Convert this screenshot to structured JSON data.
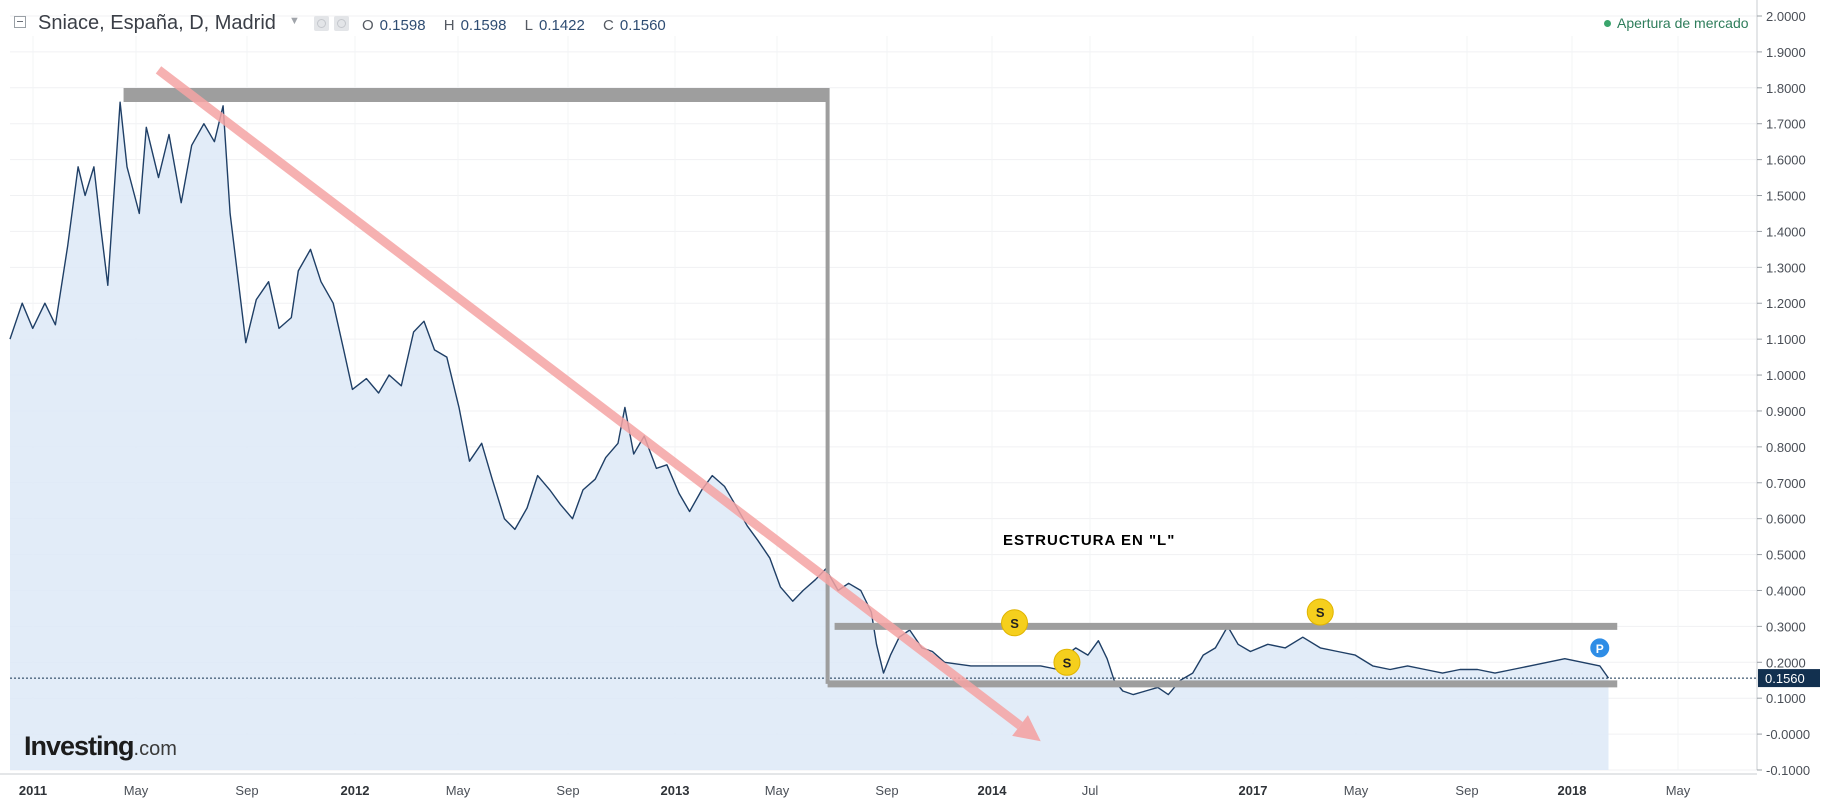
{
  "header": {
    "symbol": "Sniace, España, D, Madrid",
    "ohlc": [
      {
        "key": "O",
        "value": "0.1598"
      },
      {
        "key": "H",
        "value": "0.1598"
      },
      {
        "key": "L",
        "value": "0.1422"
      },
      {
        "key": "C",
        "value": "0.1560"
      }
    ],
    "market_status": "Apertura de mercado",
    "market_status_color": "#3aa56c"
  },
  "logo": {
    "brand": "Investing",
    "suffix": ".com"
  },
  "colors": {
    "line": "#1f3f66",
    "area": "#dde9f7",
    "trend_arrow": "#f4a3a3",
    "structure": "#9e9e9e",
    "badge_s": "#f5cf1d",
    "badge_p": "#2e8de6",
    "price_tag": "#12304f"
  },
  "chart_data": {
    "type": "area",
    "x_tick_labels": [
      "2011",
      "May",
      "Sep",
      "2012",
      "May",
      "Sep",
      "2013",
      "May",
      "Sep",
      "2014",
      "Jul",
      "2017",
      "May",
      "Sep",
      "2018",
      "May"
    ],
    "y_tick_labels": [
      "2.0000",
      "1.9000",
      "1.8000",
      "1.7000",
      "1.6000",
      "1.5000",
      "1.4000",
      "1.3000",
      "1.2000",
      "1.1000",
      "1.0000",
      "0.9000",
      "0.8000",
      "0.7000",
      "0.6000",
      "0.5000",
      "0.4000",
      "0.3000",
      "0.2000",
      "0.1000",
      "-0.0000",
      "-0.1000"
    ],
    "ylim": [
      -0.1,
      2.0
    ],
    "grid": true,
    "last_price": "0.1560",
    "annotation": "ESTRUCTURA EN \"L\"",
    "markers": [
      {
        "label": "S",
        "t": 0.575,
        "y": 0.31
      },
      {
        "label": "S",
        "t": 0.605,
        "y": 0.2
      },
      {
        "label": "S",
        "t": 0.75,
        "y": 0.34
      },
      {
        "label": "P",
        "t": 0.91,
        "y": 0.24
      }
    ],
    "series": [
      {
        "points": [
          [
            0,
            1.1
          ],
          [
            0.007,
            1.2
          ],
          [
            0.013,
            1.13
          ],
          [
            0.02,
            1.2
          ],
          [
            0.026,
            1.14
          ],
          [
            0.033,
            1.36
          ],
          [
            0.039,
            1.58
          ],
          [
            0.043,
            1.5
          ],
          [
            0.048,
            1.58
          ],
          [
            0.052,
            1.41
          ],
          [
            0.056,
            1.25
          ],
          [
            0.063,
            1.76
          ],
          [
            0.067,
            1.58
          ],
          [
            0.074,
            1.45
          ],
          [
            0.078,
            1.69
          ],
          [
            0.085,
            1.55
          ],
          [
            0.091,
            1.67
          ],
          [
            0.098,
            1.48
          ],
          [
            0.104,
            1.64
          ],
          [
            0.111,
            1.7
          ],
          [
            0.117,
            1.65
          ],
          [
            0.122,
            1.75
          ],
          [
            0.126,
            1.45
          ],
          [
            0.13,
            1.29
          ],
          [
            0.135,
            1.09
          ],
          [
            0.141,
            1.21
          ],
          [
            0.148,
            1.26
          ],
          [
            0.154,
            1.13
          ],
          [
            0.161,
            1.16
          ],
          [
            0.165,
            1.29
          ],
          [
            0.172,
            1.35
          ],
          [
            0.178,
            1.26
          ],
          [
            0.185,
            1.2
          ],
          [
            0.191,
            1.07
          ],
          [
            0.196,
            0.96
          ],
          [
            0.204,
            0.99
          ],
          [
            0.211,
            0.95
          ],
          [
            0.217,
            1.0
          ],
          [
            0.224,
            0.97
          ],
          [
            0.231,
            1.12
          ],
          [
            0.237,
            1.15
          ],
          [
            0.243,
            1.07
          ],
          [
            0.25,
            1.05
          ],
          [
            0.257,
            0.91
          ],
          [
            0.263,
            0.76
          ],
          [
            0.27,
            0.81
          ],
          [
            0.276,
            0.71
          ],
          [
            0.283,
            0.6
          ],
          [
            0.289,
            0.57
          ],
          [
            0.296,
            0.63
          ],
          [
            0.302,
            0.72
          ],
          [
            0.309,
            0.68
          ],
          [
            0.315,
            0.64
          ],
          [
            0.322,
            0.6
          ],
          [
            0.328,
            0.68
          ],
          [
            0.335,
            0.71
          ],
          [
            0.341,
            0.77
          ],
          [
            0.348,
            0.81
          ],
          [
            0.352,
            0.91
          ],
          [
            0.357,
            0.78
          ],
          [
            0.363,
            0.83
          ],
          [
            0.37,
            0.74
          ],
          [
            0.376,
            0.75
          ],
          [
            0.383,
            0.67
          ],
          [
            0.389,
            0.62
          ],
          [
            0.396,
            0.68
          ],
          [
            0.402,
            0.72
          ],
          [
            0.409,
            0.69
          ],
          [
            0.415,
            0.64
          ],
          [
            0.422,
            0.58
          ],
          [
            0.428,
            0.54
          ],
          [
            0.435,
            0.49
          ],
          [
            0.441,
            0.41
          ],
          [
            0.448,
            0.37
          ],
          [
            0.454,
            0.4
          ],
          [
            0.461,
            0.43
          ],
          [
            0.467,
            0.46
          ],
          [
            0.474,
            0.4
          ],
          [
            0.48,
            0.42
          ],
          [
            0.487,
            0.4
          ],
          [
            0.493,
            0.34
          ],
          [
            0.496,
            0.25
          ],
          [
            0.5,
            0.17
          ],
          [
            0.504,
            0.22
          ],
          [
            0.509,
            0.27
          ],
          [
            0.515,
            0.29
          ],
          [
            0.522,
            0.24
          ],
          [
            0.528,
            0.23
          ],
          [
            0.535,
            0.2
          ],
          [
            0.55,
            0.19
          ],
          [
            0.57,
            0.19
          ],
          [
            0.59,
            0.19
          ],
          [
            0.6,
            0.18
          ],
          [
            0.602,
            0.21
          ],
          [
            0.61,
            0.24
          ],
          [
            0.617,
            0.22
          ],
          [
            0.623,
            0.26
          ],
          [
            0.628,
            0.21
          ],
          [
            0.632,
            0.15
          ],
          [
            0.637,
            0.12
          ],
          [
            0.643,
            0.11
          ],
          [
            0.65,
            0.12
          ],
          [
            0.657,
            0.13
          ],
          [
            0.663,
            0.11
          ],
          [
            0.67,
            0.15
          ],
          [
            0.677,
            0.17
          ],
          [
            0.683,
            0.22
          ],
          [
            0.69,
            0.24
          ],
          [
            0.697,
            0.3
          ],
          [
            0.703,
            0.25
          ],
          [
            0.71,
            0.23
          ],
          [
            0.72,
            0.25
          ],
          [
            0.73,
            0.24
          ],
          [
            0.74,
            0.27
          ],
          [
            0.75,
            0.24
          ],
          [
            0.76,
            0.23
          ],
          [
            0.77,
            0.22
          ],
          [
            0.78,
            0.19
          ],
          [
            0.79,
            0.18
          ],
          [
            0.8,
            0.19
          ],
          [
            0.81,
            0.18
          ],
          [
            0.82,
            0.17
          ],
          [
            0.83,
            0.18
          ],
          [
            0.84,
            0.18
          ],
          [
            0.85,
            0.17
          ],
          [
            0.86,
            0.18
          ],
          [
            0.87,
            0.19
          ],
          [
            0.88,
            0.2
          ],
          [
            0.89,
            0.21
          ],
          [
            0.9,
            0.2
          ],
          [
            0.91,
            0.19
          ],
          [
            0.915,
            0.156
          ]
        ]
      }
    ],
    "drawings": {
      "downtrend_arrow": {
        "from": [
          0.085,
          1.85
        ],
        "to": [
          0.59,
          -0.02
        ]
      },
      "l_structure": {
        "top_bar": {
          "t0": 0.065,
          "t1": 0.468,
          "y": 1.78
        },
        "vertical": {
          "t": 0.468,
          "y0": 1.78,
          "y1": 0.14
        },
        "bottom_bar": {
          "t0": 0.468,
          "t1": 0.92,
          "y": 0.14
        },
        "range_top": {
          "t0": 0.472,
          "t1": 0.92,
          "y": 0.3
        }
      }
    }
  }
}
